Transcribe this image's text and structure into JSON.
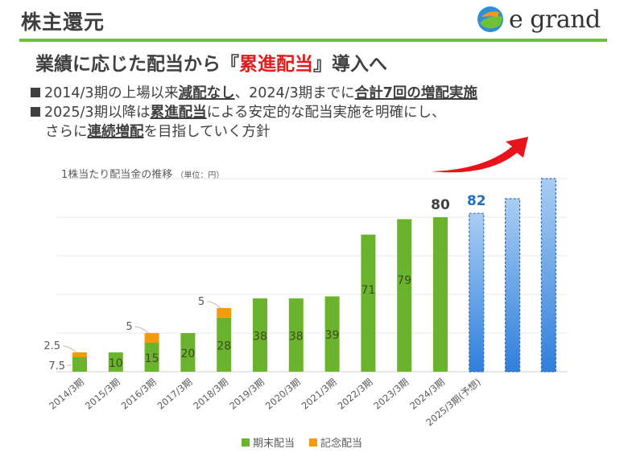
{
  "header": {
    "section_title": "株主還元",
    "logo_text": "e grand",
    "headline_pre": "業績に応じた配当から『",
    "headline_highlight": "累進配当",
    "headline_post": "』導入へ"
  },
  "bullets": [
    {
      "parts": [
        {
          "text": "2014/3期の上場以来",
          "em": false
        },
        {
          "text": "減配なし",
          "em": true
        },
        {
          "text": "、2024/3期までに",
          "em": false
        },
        {
          "text": "合計7回の増配実施",
          "em": true
        }
      ]
    },
    {
      "parts": [
        {
          "text": "2025/3期以降は",
          "em": false
        },
        {
          "text": "累進配当",
          "em": true
        },
        {
          "text": "による安定的な配当実施を明確にし、",
          "em": false
        }
      ]
    },
    {
      "parts": [
        {
          "text": "さらに",
          "em": false
        },
        {
          "text": "連続増配",
          "em": true
        },
        {
          "text": "を目指していく方針",
          "em": false
        }
      ]
    }
  ],
  "colors": {
    "accent_green": "#6cc03a",
    "regular_dividend": "#6ab42d",
    "commemorative_dividend": "#f59a0c",
    "forecast_blue": "#3a87dc",
    "forecast_label": "#1f6fbf",
    "arrow_red": "#e8141b"
  },
  "chart_data": {
    "type": "bar",
    "stacked": true,
    "title": "1株当たり配当金の推移",
    "unit_note": "（単位：円）",
    "categories": [
      "2014/3期",
      "2015/3期",
      "2016/3期",
      "2017/3期",
      "2018/3期",
      "2019/3期",
      "2020/3期",
      "2021/3期",
      "2022/3期",
      "2023/3期",
      "2024/3期",
      "2025/3期(予想)"
    ],
    "series": [
      {
        "name": "期末配当",
        "values": [
          7.5,
          10,
          15,
          20,
          28,
          38,
          38,
          39,
          71,
          79,
          80,
          82
        ]
      },
      {
        "name": "記念配当",
        "values": [
          2.5,
          0,
          5,
          0,
          5,
          0,
          0,
          0,
          0,
          0,
          0,
          0
        ]
      }
    ],
    "segment_labels": {
      "regular": [
        "7.5",
        "10",
        "15",
        "20",
        "28",
        "38",
        "38",
        "39",
        "71",
        "79",
        "",
        ""
      ],
      "commemorative": [
        "2.5",
        "",
        "5",
        "",
        "5",
        "",
        "",
        "",
        "",
        "",
        "",
        ""
      ]
    },
    "total_labels": {
      "2024/3期": "80",
      "2025/3期(予想)": "82"
    },
    "forecast_category": "2025/3期(予想)",
    "ylim": [
      0,
      100
    ],
    "grid": true,
    "legend": [
      "期末配当",
      "記念配当"
    ],
    "legend_position": "bottom"
  }
}
